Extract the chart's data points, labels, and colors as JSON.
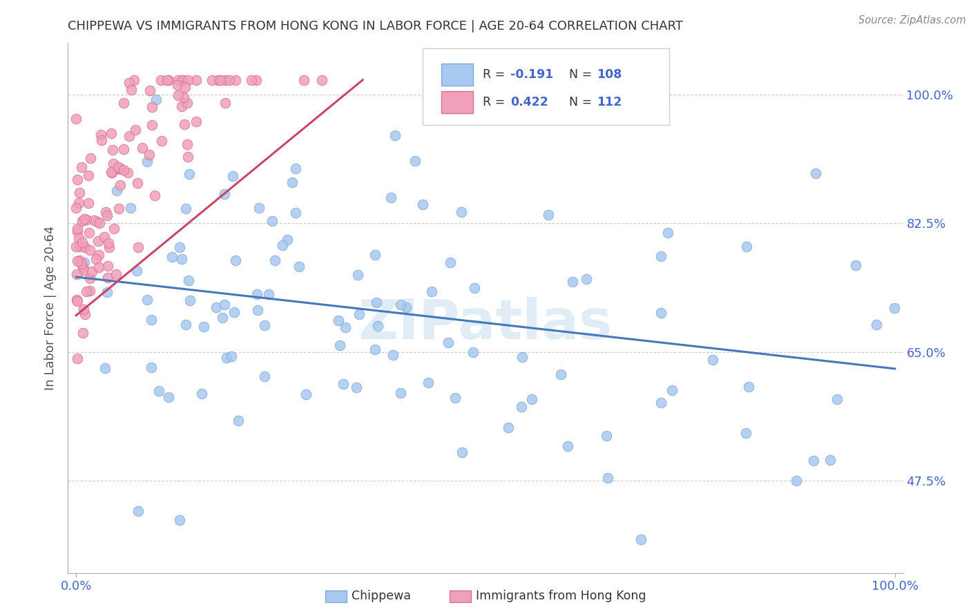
{
  "title": "CHIPPEWA VS IMMIGRANTS FROM HONG KONG IN LABOR FORCE | AGE 20-64 CORRELATION CHART",
  "source": "Source: ZipAtlas.com",
  "ylabel": "In Labor Force | Age 20-64",
  "watermark_text": "ZIPatlas",
  "blue_scatter": "#a8c8f0",
  "blue_edge": "#7aaad8",
  "pink_scatter": "#f0a0b8",
  "pink_edge": "#d87090",
  "trend_blue": "#4477bb",
  "trend_pink": "#cc4466",
  "tick_label_color": "#4466cc",
  "axis_label_color": "#555555",
  "title_color": "#333333",
  "legend_text_color": "#4466cc",
  "legend_border_color": "#cccccc",
  "bottom_legend_text_color": "#333333",
  "R_blue": "-0.191",
  "N_blue": "108",
  "R_pink": "0.422",
  "N_pink": "112",
  "label_blue": "Chippewa",
  "label_pink": "Immigrants from Hong Kong",
  "ytick_vals": [
    0.475,
    0.65,
    0.825,
    1.0
  ],
  "ytick_labels": [
    "47.5%",
    "65.0%",
    "82.5%",
    "100.0%"
  ],
  "xlim": [
    0.0,
    1.0
  ],
  "ylim": [
    0.35,
    1.07
  ]
}
